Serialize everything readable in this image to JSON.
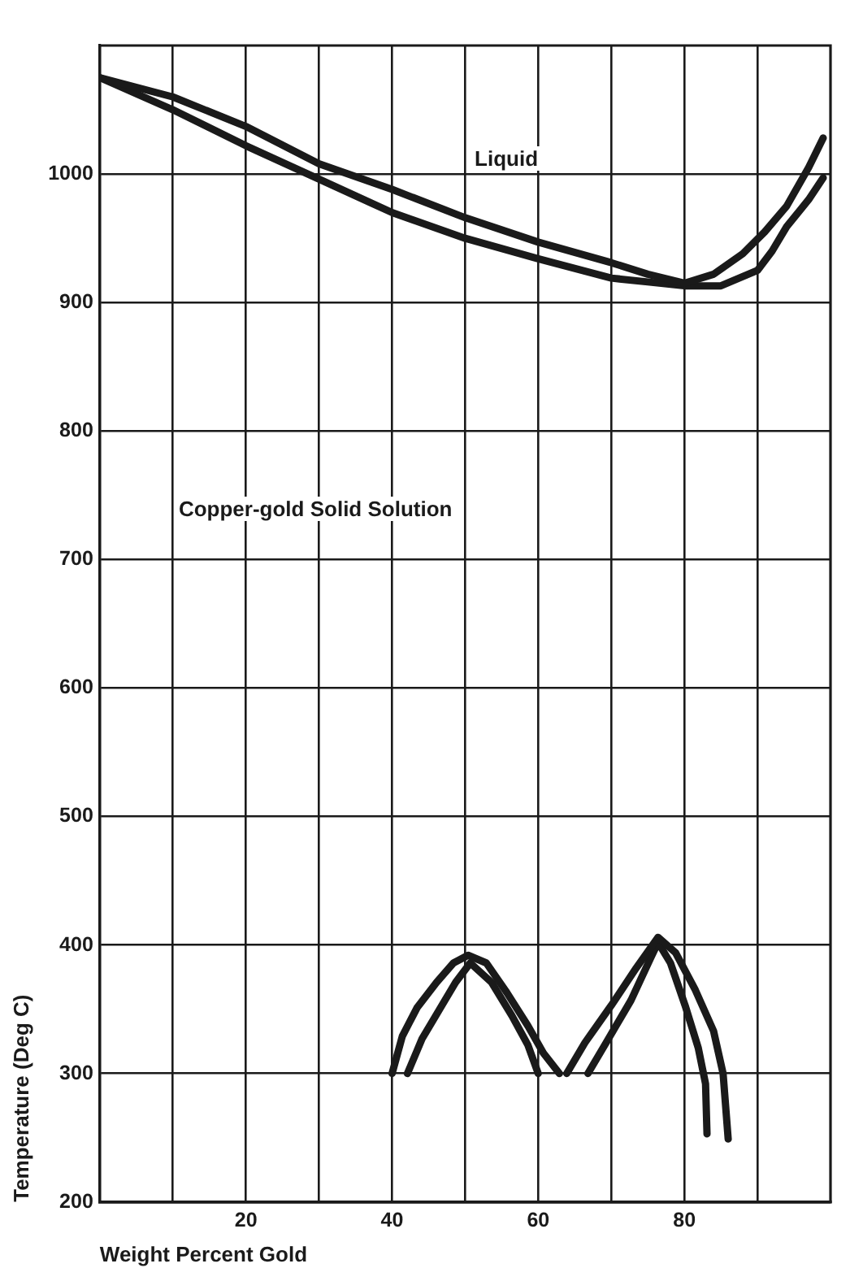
{
  "chart_data": {
    "type": "line",
    "xlabel": "Weight Percent Gold",
    "ylabel": "Temperature (Deg C)",
    "annotations": [
      "Liquid",
      "Copper-gold Solid Solution"
    ],
    "xlim": [
      0,
      100
    ],
    "ylim": [
      200,
      1100
    ],
    "xticks": [
      {
        "value": 10,
        "label": null
      },
      20,
      {
        "value": 30,
        "label": null
      },
      40,
      {
        "value": 50,
        "label": null
      },
      60,
      {
        "value": 70,
        "label": null
      },
      80,
      {
        "value": 90,
        "label": null
      }
    ],
    "yticks": [
      200,
      300,
      400,
      500,
      600,
      700,
      800,
      900,
      1000
    ],
    "grid": true,
    "marker": "none",
    "line_style": "solid",
    "series": [
      {
        "color": "#1a1a1a",
        "x": [
          0,
          10,
          20,
          30,
          40,
          50,
          60,
          70,
          75,
          80,
          84,
          88,
          91,
          94,
          97,
          99
        ],
        "values": [
          1075,
          1060,
          1037,
          1008,
          988,
          966,
          947,
          931,
          922,
          915,
          922,
          938,
          955,
          975,
          1005,
          1028
        ]
      },
      {
        "color": "#1a1a1a",
        "x": [
          0,
          10,
          20,
          30,
          40,
          50,
          60,
          70,
          75,
          80,
          85,
          90,
          92,
          94,
          97,
          99
        ],
        "values": [
          1075,
          1050,
          1022,
          996,
          970,
          950,
          934,
          919,
          916,
          913,
          913,
          925,
          940,
          959,
          980,
          997
        ]
      },
      {
        "color": "#1a1a1a",
        "x": [
          40,
          41.4,
          43.4,
          46.1,
          48.4,
          50.4,
          52.9,
          55.7,
          58.6,
          60.7,
          62.9
        ],
        "values": [
          300,
          329,
          351,
          371,
          386,
          392,
          386,
          363,
          337,
          316,
          300
        ]
      },
      {
        "color": "#1a1a1a",
        "x": [
          42.1,
          44.1,
          46.4,
          48.7,
          50.7,
          53.6,
          56.4,
          58.6,
          60
        ],
        "values": [
          300,
          327,
          349,
          371,
          386,
          371,
          345,
          322,
          300
        ]
      },
      {
        "color": "#1a1a1a",
        "x": [
          63.9,
          66.4,
          70,
          73.4,
          76.4,
          78.8,
          81.5,
          84,
          85.3,
          86
        ],
        "values": [
          300,
          324,
          353,
          382,
          406,
          394,
          365,
          333,
          300,
          249
        ]
      },
      {
        "color": "#1a1a1a",
        "x": [
          66.8,
          69.3,
          72.7,
          75.4,
          76.4,
          78.1,
          80.1,
          81.9,
          82.9,
          83.1
        ],
        "values": [
          300,
          324,
          357,
          390,
          402,
          386,
          353,
          320,
          292,
          253
        ]
      }
    ]
  }
}
